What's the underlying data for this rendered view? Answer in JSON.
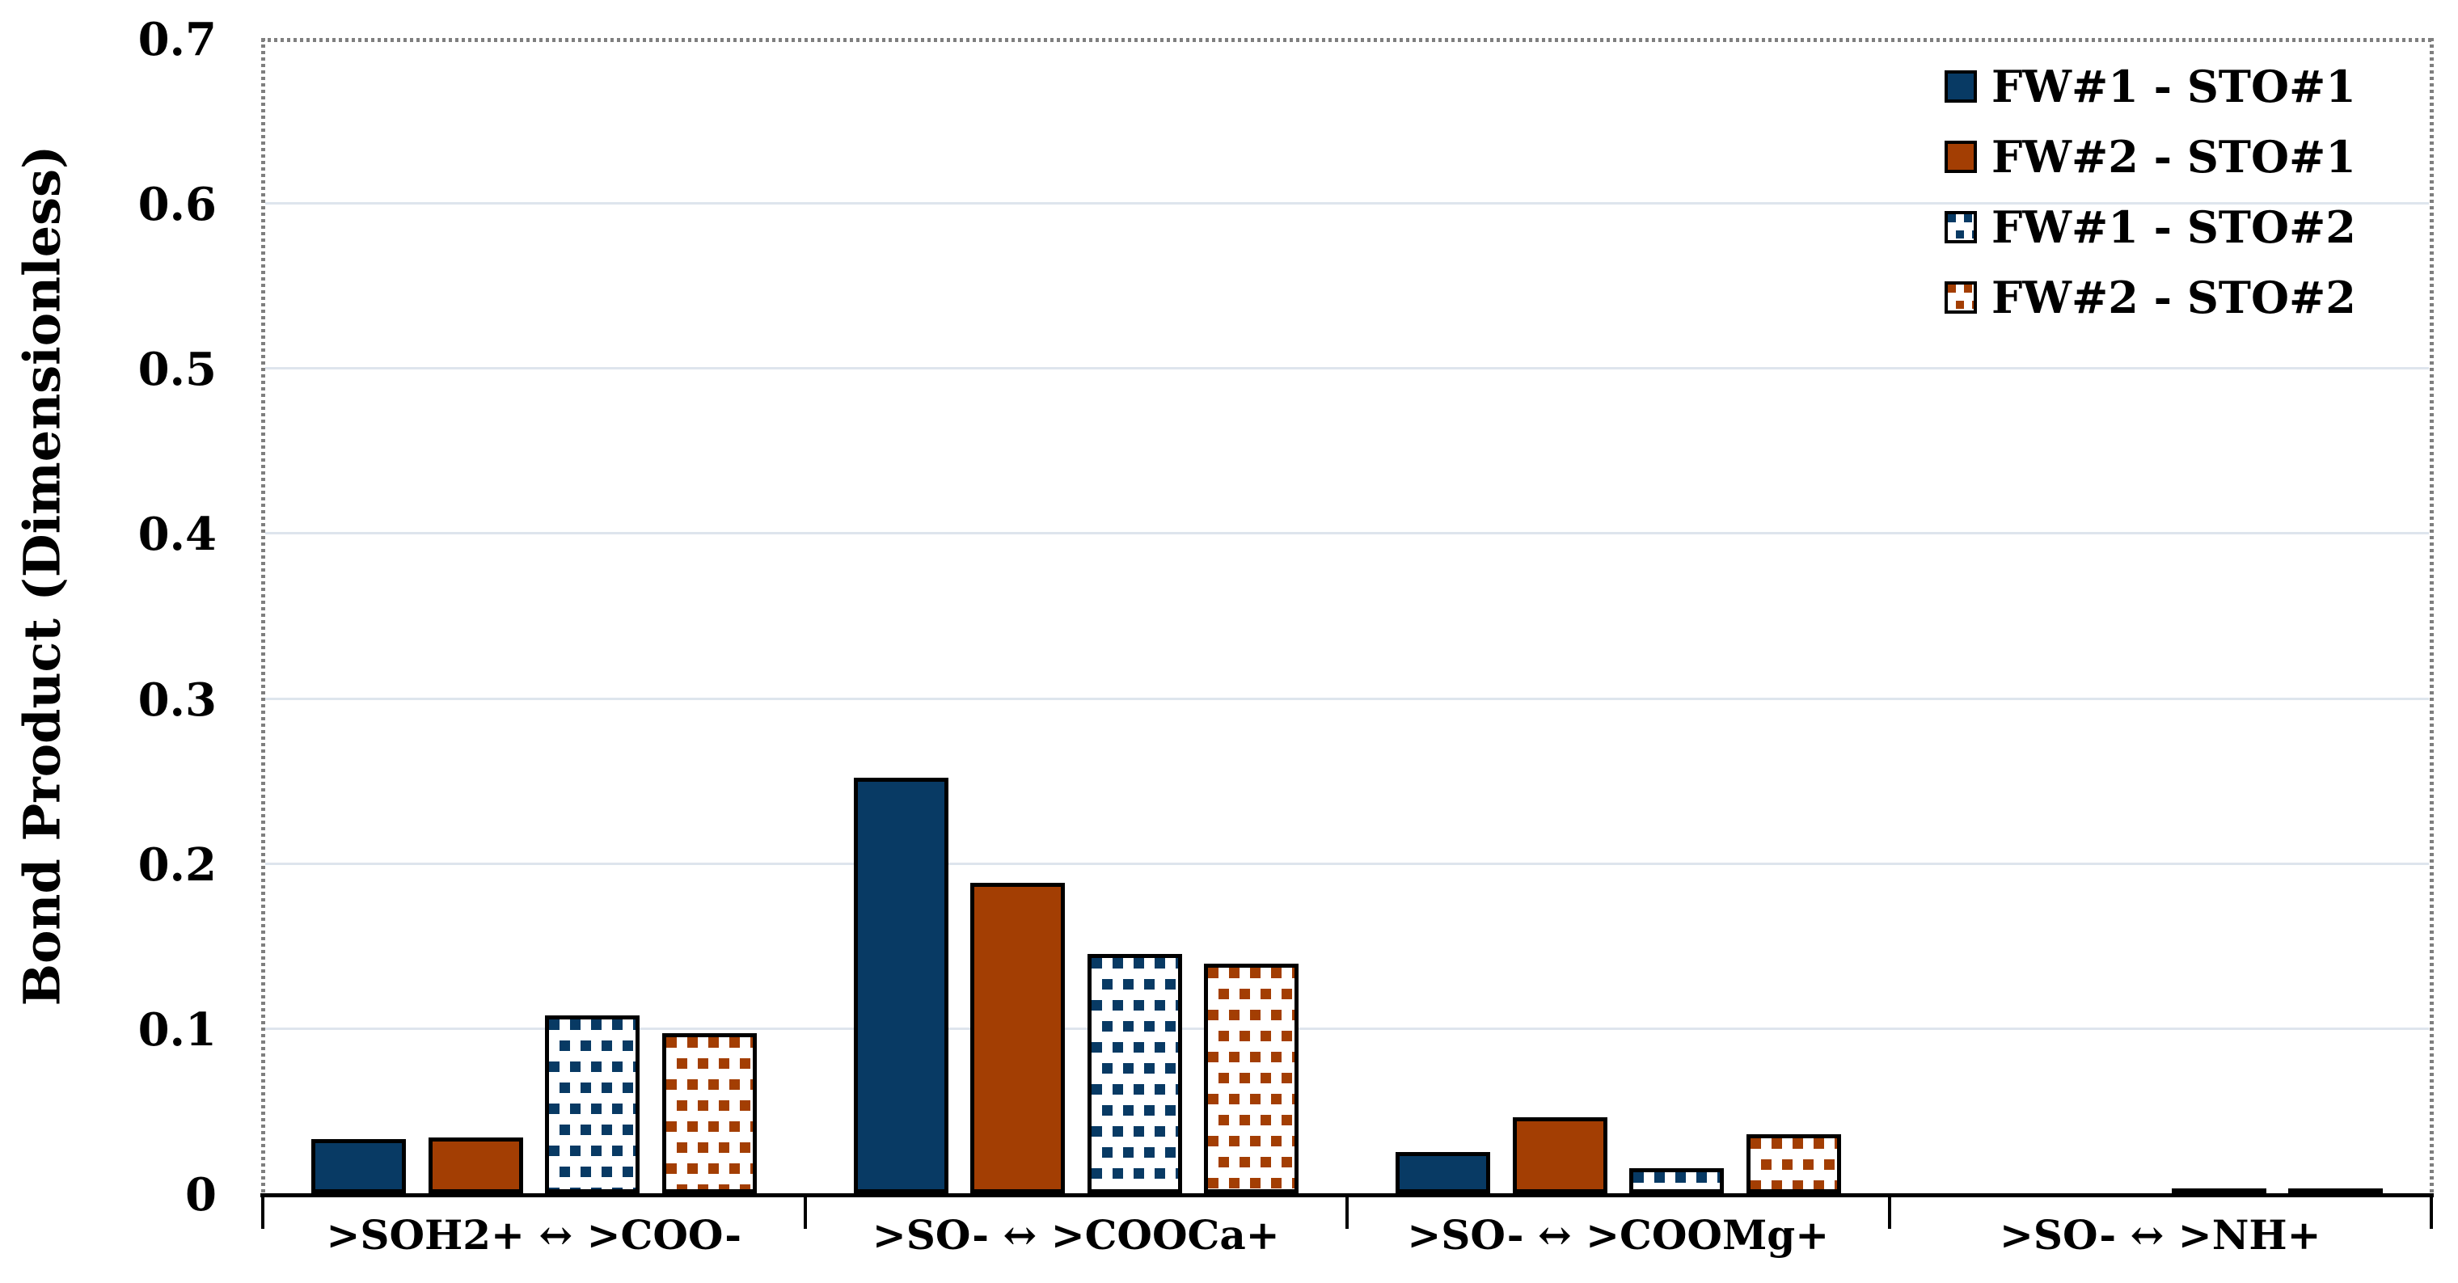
{
  "chart_data": {
    "type": "bar",
    "title": "",
    "xlabel": "",
    "ylabel": "Bond Product (Dimensionless)",
    "ylim": [
      0,
      0.7
    ],
    "y_ticks": [
      {
        "value": 0.0,
        "label": "0"
      },
      {
        "value": 0.1,
        "label": "0.1"
      },
      {
        "value": 0.2,
        "label": "0.2"
      },
      {
        "value": 0.3,
        "label": "0.3"
      },
      {
        "value": 0.4,
        "label": "0.4"
      },
      {
        "value": 0.5,
        "label": "0.5"
      },
      {
        "value": 0.6,
        "label": "0.6"
      },
      {
        "value": 0.7,
        "label": "0.7"
      }
    ],
    "grid": "horizontal",
    "legend_position": "top-right",
    "categories": [
      ">SOH2+ ↔ >COO-",
      ">SO- ↔ >COOCa+",
      ">SO- ↔ >COOMg+",
      ">SO- ↔ >NH+"
    ],
    "series": [
      {
        "name": "FW#1 - STO#1",
        "fill": "solid",
        "color_key": "navy",
        "values": [
          0.033,
          0.252,
          0.025,
          0.0
        ]
      },
      {
        "name": "FW#2 - STO#1",
        "fill": "solid",
        "color_key": "orange",
        "values": [
          0.034,
          0.188,
          0.046,
          0.0
        ]
      },
      {
        "name": "FW#1 - STO#2",
        "fill": "pattern",
        "color_key": "navy",
        "values": [
          0.108,
          0.145,
          0.015,
          0.002
        ]
      },
      {
        "name": "FW#2 - STO#2",
        "fill": "pattern",
        "color_key": "orange",
        "values": [
          0.097,
          0.139,
          0.036,
          0.003
        ]
      }
    ]
  },
  "colors": {
    "navy": "#083A64",
    "orange": "#A33E03",
    "gridline": "#DEE5ED",
    "spine_dotted": "#7F7F7F",
    "axis": "#000000",
    "pattern_background": "#FFFFFF"
  }
}
